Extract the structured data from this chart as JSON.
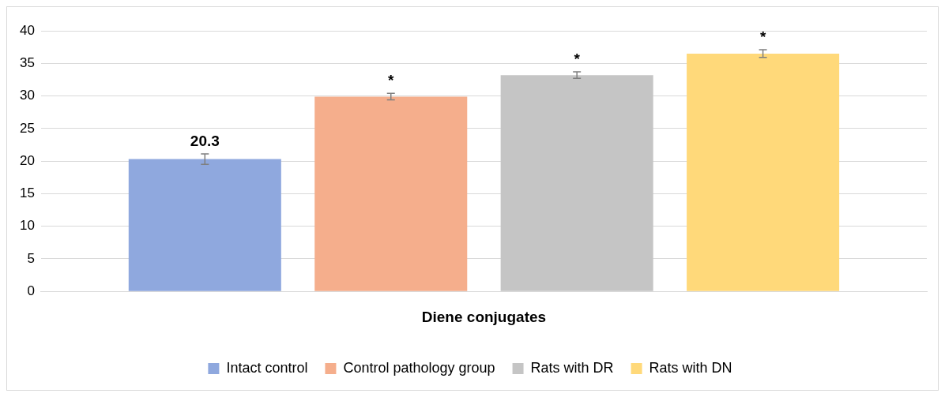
{
  "chart_data": {
    "type": "bar",
    "categories": [
      "Diene conjugates"
    ],
    "series": [
      {
        "name": "Intact control",
        "color": "#8fa8de",
        "values": [
          20.3
        ],
        "errors": [
          0.8
        ],
        "value_labels": [
          "20.3"
        ]
      },
      {
        "name": "Control pathology group",
        "color": "#f5ae8c",
        "values": [
          29.9
        ],
        "errors": [
          0.5
        ],
        "value_labels": [
          "*"
        ]
      },
      {
        "name": "Rats with DR",
        "color": "#c5c5c5",
        "values": [
          33.2
        ],
        "errors": [
          0.5
        ],
        "value_labels": [
          "*"
        ]
      },
      {
        "name": "Rats with DN",
        "color": "#ffd97a",
        "values": [
          36.5
        ],
        "errors": [
          0.6
        ],
        "value_labels": [
          "*"
        ]
      }
    ],
    "ylim": [
      0,
      40
    ],
    "yticks": [
      0,
      5,
      10,
      15,
      20,
      25,
      30,
      35,
      40
    ],
    "grid": "y",
    "legend": "bottom"
  }
}
